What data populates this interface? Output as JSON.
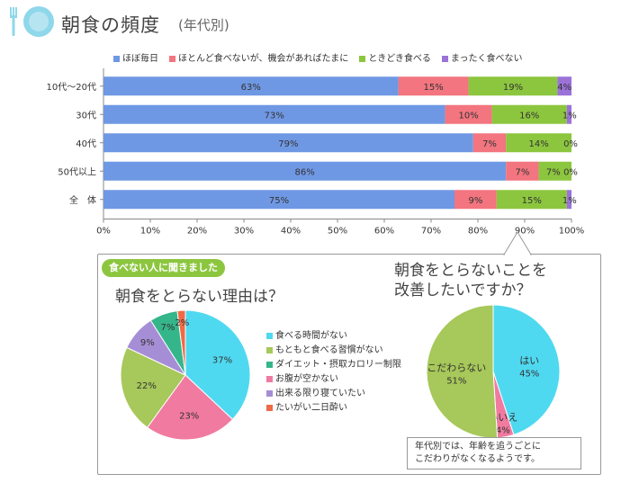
{
  "header": {
    "title": "朝食の頻度",
    "subtitle": "(年代別)"
  },
  "colors": {
    "blue": "#6f98e4",
    "pink": "#f2757f",
    "green": "#8cc63f",
    "purple": "#9b72d8",
    "cyan": "#4fd9f0",
    "olive": "#a7c85a",
    "teal": "#35b58a",
    "rose": "#f07aa0",
    "lavender": "#a68ed6",
    "orange": "#ef6b45",
    "icon": "#8fd7ea"
  },
  "icons": [
    "fork-icon",
    "plate-icon"
  ],
  "chart_data": [
    {
      "type": "bar",
      "orientation": "horizontal",
      "stacked": true,
      "categories": [
        "10代～20代",
        "30代",
        "40代",
        "50代以上",
        "全　体"
      ],
      "series": [
        {
          "name": "ほぼ毎日",
          "values": [
            63,
            73,
            79,
            86,
            75
          ],
          "labels": [
            "63%",
            "73%",
            "79%",
            "86%",
            "75%"
          ]
        },
        {
          "name": "ほとんど食べないが、機会があればたまに",
          "values": [
            15,
            10,
            7,
            7,
            9
          ],
          "labels": [
            "15%",
            "10%",
            "7%",
            "7%",
            "9%"
          ]
        },
        {
          "name": "ときどき食べる",
          "values": [
            19,
            16,
            14,
            7,
            15
          ],
          "labels": [
            "19%",
            "16%",
            "14%",
            "7%",
            "15%"
          ]
        },
        {
          "name": "まったく食べない",
          "values": [
            4,
            1,
            0,
            0,
            1
          ],
          "labels": [
            "4%",
            "1%",
            "0%",
            "0%",
            "1%"
          ]
        }
      ],
      "xlim": [
        0,
        100
      ],
      "xticks": [
        "0%",
        "10%",
        "20%",
        "30%",
        "40%",
        "50%",
        "60%",
        "70%",
        "80%",
        "90%",
        "100%"
      ],
      "legend": "top"
    },
    {
      "type": "pie",
      "badge": "食べない人に聞きました",
      "title": "朝食をとらない理由は？",
      "slices": [
        {
          "name": "食べる時間がない",
          "value": 37,
          "label": "37%"
        },
        {
          "name": "お腹が空かない",
          "value": 23,
          "label": "23%"
        },
        {
          "name": "もともと食べる習慣がない",
          "value": 22,
          "label": "22%"
        },
        {
          "name": "出来る限り寝ていたい",
          "value": 9,
          "label": "9%"
        },
        {
          "name": "ダイエット・摂取カロリー制限",
          "value": 7,
          "label": "7%"
        },
        {
          "name": "たいがい二日酔い",
          "value": 2,
          "label": "2%"
        }
      ],
      "legend": "right"
    },
    {
      "type": "pie",
      "title": "朝食をとらないことを改善したいですか？",
      "title_lines": [
        "朝食をとらないことを",
        "改善したいですか？"
      ],
      "slices": [
        {
          "name": "はい",
          "value": 45,
          "label": "45%"
        },
        {
          "name": "いいえ",
          "value": 4,
          "label": "4%"
        },
        {
          "name": "こだわらない",
          "value": 51,
          "label": "51%"
        }
      ],
      "note_lines": [
        "年代別では、年齢を追うごとに",
        "こだわりがなくなるようです。"
      ]
    }
  ]
}
